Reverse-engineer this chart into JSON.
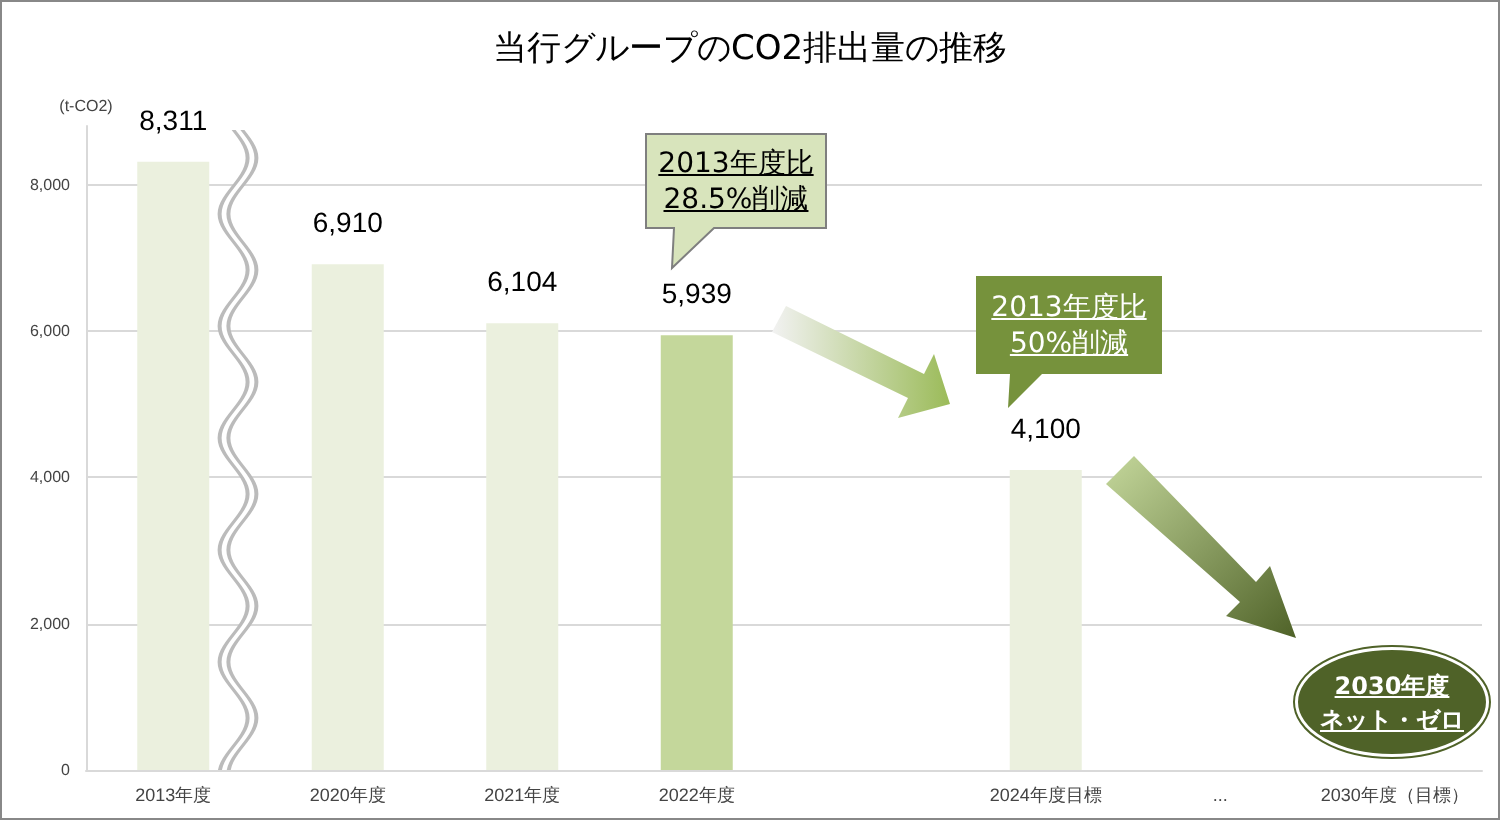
{
  "chart_data": {
    "type": "bar",
    "title": "当行グループのCO2排出量の推移",
    "ylabel": "(t-CO2)",
    "categories": [
      "2013年度",
      "2020年度",
      "2021年度",
      "2022年度",
      null,
      "2024年度目標",
      "...",
      "2030年度（目標）"
    ],
    "values": [
      8311,
      6910,
      6104,
      5939,
      null,
      4100,
      null,
      null
    ],
    "colors": [
      "#ebf0de",
      "#ebf0de",
      "#ebf0de",
      "#c4d79b",
      null,
      "#ebf0de",
      null,
      null
    ],
    "value_labels": [
      "8,311",
      "6,910",
      "6,104",
      "5,939",
      null,
      "4,100",
      null,
      null
    ],
    "ylim": [
      0,
      8800
    ],
    "yticks": [
      {
        "value": 0,
        "label": "0"
      },
      {
        "value": 2000,
        "label": "2,000"
      },
      {
        "value": 4000,
        "label": "4,000"
      },
      {
        "value": 6000,
        "label": "6,000"
      },
      {
        "value": 8000,
        "label": "8,000"
      }
    ],
    "grid": "y",
    "annotations": [
      "2013年度比\n28.5%削減",
      "2013年度比\n50%削減",
      "2030年度ネット・ゼロ"
    ]
  }
}
